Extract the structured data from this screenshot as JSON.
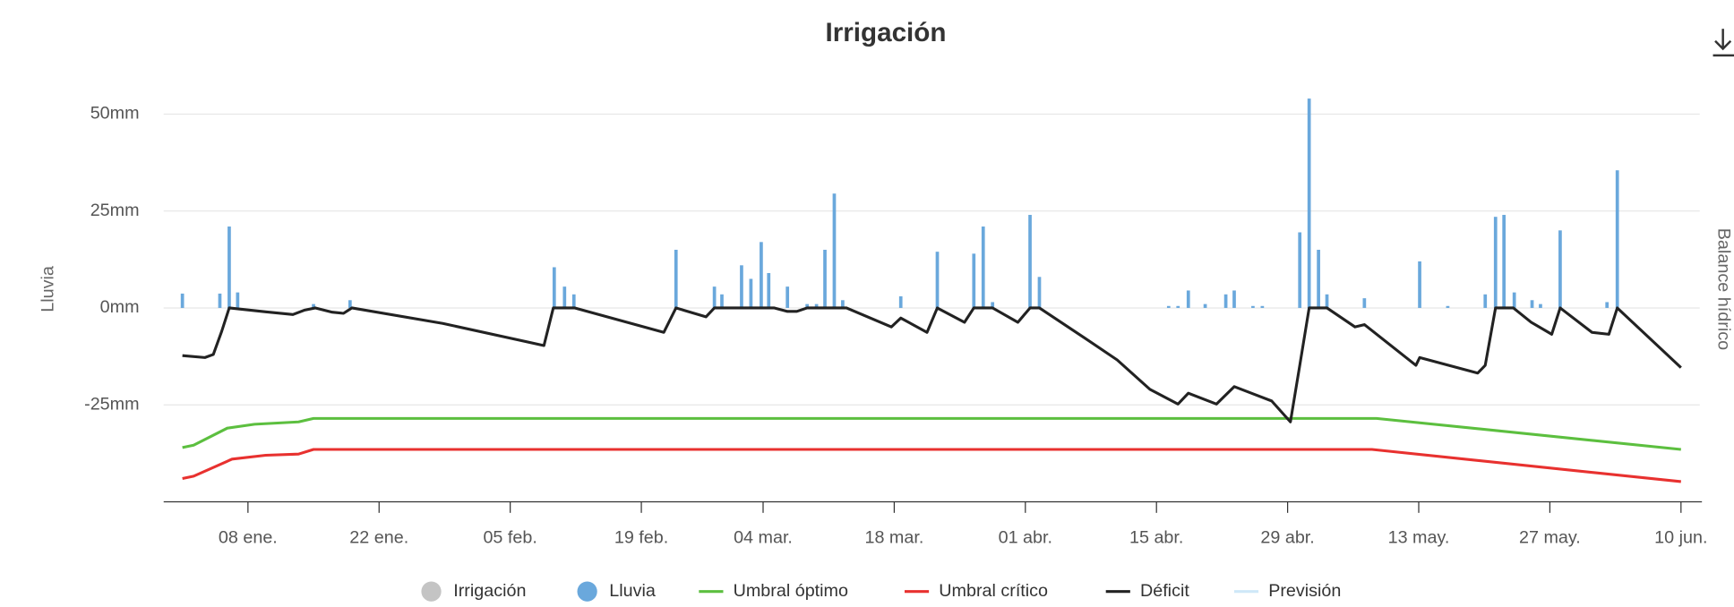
{
  "chart_data": {
    "type": "combo",
    "title": "Irrigación",
    "y_axis_title": "Lluvia",
    "y2_axis_title": "Balance hídrico",
    "xlim": [
      -1,
      163
    ],
    "xticks": [
      {
        "value": 8,
        "label": "08 ene."
      },
      {
        "value": 22,
        "label": "22 ene."
      },
      {
        "value": 36,
        "label": "05 feb."
      },
      {
        "value": 50,
        "label": "19 feb."
      },
      {
        "value": 63,
        "label": "04 mar."
      },
      {
        "value": 77,
        "label": "18 mar."
      },
      {
        "value": 91,
        "label": "01 abr."
      },
      {
        "value": 105,
        "label": "15 abr."
      },
      {
        "value": 119,
        "label": "29 abr."
      },
      {
        "value": 133,
        "label": "13 may."
      },
      {
        "value": 147,
        "label": "27 may."
      },
      {
        "value": 161,
        "label": "10 jun."
      }
    ],
    "ylim": [
      -50,
      60
    ],
    "yticks": [
      {
        "value": -25,
        "label": "-25mm"
      },
      {
        "value": 0,
        "label": "0mm"
      },
      {
        "value": 25,
        "label": "25mm"
      },
      {
        "value": 50,
        "label": "50mm"
      }
    ],
    "grid": true,
    "legend": "bottom",
    "series": [
      {
        "name": "Irrigación",
        "type": "column",
        "color": "#c4c4c4",
        "x": [],
        "values": []
      },
      {
        "name": "Lluvia",
        "type": "column",
        "color": "#6aa8dc",
        "x": [
          1.0,
          5.0,
          6.0,
          6.9,
          15,
          18.9,
          40.7,
          41.8,
          42.8,
          53.7,
          57.8,
          58.6,
          60.7,
          61.7,
          62.8,
          63.6,
          65.6,
          67.7,
          68.7,
          69.6,
          70.6,
          71.5,
          77.7,
          81.6,
          85.5,
          86.5,
          87.5,
          91.5,
          92.5,
          106.3,
          107.3,
          108.4,
          110.2,
          112.4,
          113.3,
          115.3,
          116.3,
          120.3,
          121.3,
          122.3,
          123.2,
          127.2,
          133.1,
          136.1,
          140.1,
          141.2,
          142.1,
          143.2,
          145.1,
          146,
          148.1,
          153.1,
          154.2
        ],
        "values": [
          3.7,
          3.7,
          21,
          4,
          1,
          2,
          10.5,
          5.5,
          3.5,
          15,
          5.5,
          3.5,
          11,
          7.5,
          17,
          9,
          5.5,
          1,
          1,
          15,
          29.5,
          2,
          3,
          14.5,
          14,
          21,
          1.5,
          24,
          8,
          0.5,
          0.5,
          4.5,
          1,
          3.5,
          4.5,
          0.5,
          0.5,
          19.5,
          54,
          15,
          3.5,
          2.5,
          12,
          0.5,
          3.5,
          23.5,
          24,
          4,
          2,
          1,
          20,
          1.5,
          35.5
        ]
      },
      {
        "name": "Umbral óptimo",
        "type": "line",
        "color": "#5cbf3f",
        "x": [
          1,
          2.2,
          5.8,
          8.7,
          13.4,
          15,
          128.5,
          161
        ],
        "values": [
          -36,
          -35.4,
          -31,
          -30,
          -29.4,
          -28.5,
          -28.5,
          -36.5
        ]
      },
      {
        "name": "Umbral crítico",
        "type": "line",
        "color": "#e8312f",
        "x": [
          1,
          2.2,
          6.3,
          9.9,
          13.4,
          15,
          128,
          161
        ],
        "values": [
          -44,
          -43.4,
          -39,
          -38,
          -37.7,
          -36.5,
          -36.5,
          -44.8
        ]
      },
      {
        "name": "Déficit",
        "type": "line",
        "color": "#222222",
        "x": [
          1.0,
          3.4,
          4.3,
          5.2,
          6.0,
          9.9,
          12.8,
          14,
          15.2,
          17,
          18.2,
          19.1,
          28.8,
          39.6,
          40.6,
          42.9,
          52.4,
          53.7,
          56.9,
          57.8,
          64.2,
          65.6,
          66.6,
          67.7,
          71.9,
          76.7,
          77.7,
          80.5,
          81.6,
          84.5,
          85.5,
          87.5,
          90.2,
          91.5,
          92.5,
          97.3,
          100.8,
          104.3,
          107.3,
          108.4,
          111.4,
          113.3,
          117.3,
          119.3,
          120.3,
          121.3,
          123.2,
          126.2,
          127.2,
          132.7,
          133.1,
          139.3,
          140.1,
          141.2,
          143.1,
          145,
          147.2,
          148.1,
          151.5,
          153.3,
          154.2,
          161
        ],
        "values": [
          -12.3,
          -12.8,
          -12,
          -6,
          0,
          -1,
          -1.7,
          -0.6,
          0,
          -1.1,
          -1.4,
          0,
          -4,
          -9.7,
          0,
          0,
          -6.3,
          0,
          -2.3,
          0,
          0,
          -0.9,
          -0.9,
          0,
          0,
          -4.9,
          -2.6,
          -6.3,
          0,
          -3.7,
          0,
          0,
          -3.7,
          0,
          0,
          -7.7,
          -13.4,
          -21,
          -24.8,
          -22,
          -24.8,
          -20.3,
          -24,
          -29.4,
          -14.8,
          0,
          0,
          -4.9,
          -4.3,
          -14.8,
          -12.8,
          -16.8,
          -14.8,
          0,
          0,
          -3.7,
          -6.8,
          0,
          -6.3,
          -6.8,
          0,
          -15.4
        ]
      },
      {
        "name": "Previsión",
        "type": "line",
        "color": "#cfe8f8",
        "x": [],
        "values": []
      }
    ]
  }
}
